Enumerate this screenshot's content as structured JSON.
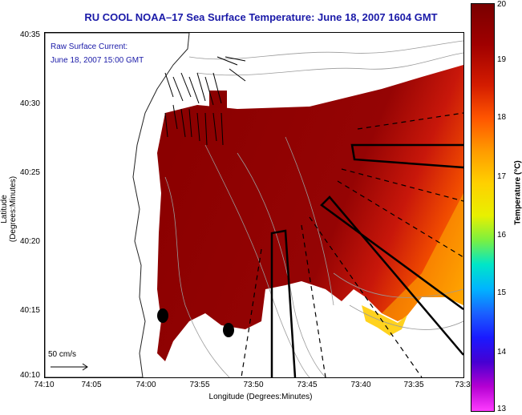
{
  "title": "RU COOL   NOAA–17  Sea Surface Temperature:  June 18, 2007 1604 GMT",
  "raw_current_label": "Raw Surface Current:",
  "raw_current_time": "June 18, 2007 15:00 GMT",
  "y_axis_title": "Latitude (Degrees:Minutes)",
  "x_axis_title": "Longitude (Degrees:Minutes)",
  "y_ticks": [
    "40:35",
    "40:30",
    "40:25",
    "40:20",
    "40:15",
    "40:10"
  ],
  "x_ticks": [
    "74:10",
    "74:05",
    "74:00",
    "73:55",
    "73:50",
    "73:45",
    "73:40",
    "73:35",
    "73:3"
  ],
  "scale_label": "50 cm/s",
  "colorbar": {
    "title": "Temperature (°C)",
    "ticks": [
      "20",
      "19",
      "18",
      "17",
      "16",
      "15",
      "14",
      "13"
    ],
    "min": 13,
    "max": 20
  },
  "colors": {
    "title": "#1a1aa8",
    "warm": "#8b0000",
    "hot": "#ff6a00"
  }
}
